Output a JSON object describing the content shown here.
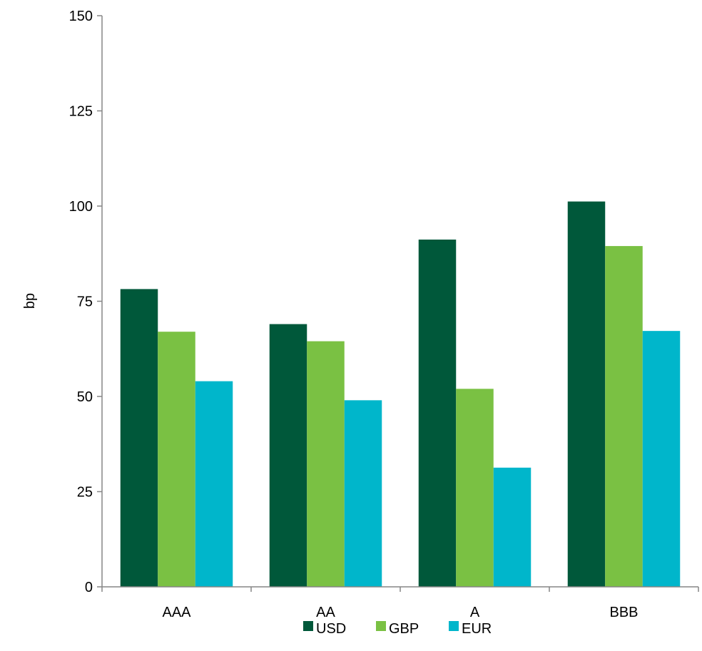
{
  "chart_data": {
    "type": "bar",
    "categories": [
      "AAA",
      "AA",
      "A",
      "BBB"
    ],
    "series": [
      {
        "name": "USD",
        "color": "#00583a",
        "values": [
          78.2,
          69.0,
          91.2,
          101.2
        ]
      },
      {
        "name": "GBP",
        "color": "#7ac143",
        "values": [
          67.0,
          64.5,
          52.0,
          89.5
        ]
      },
      {
        "name": "EUR",
        "color": "#00b6cb",
        "values": [
          54.0,
          49.0,
          31.3,
          67.2
        ]
      }
    ],
    "title": "",
    "xlabel": "",
    "ylabel": "bp",
    "ylim": [
      0,
      150
    ],
    "yticks": [
      0,
      25,
      50,
      75,
      100,
      125,
      150
    ],
    "grid": false,
    "legend": "bottom"
  }
}
